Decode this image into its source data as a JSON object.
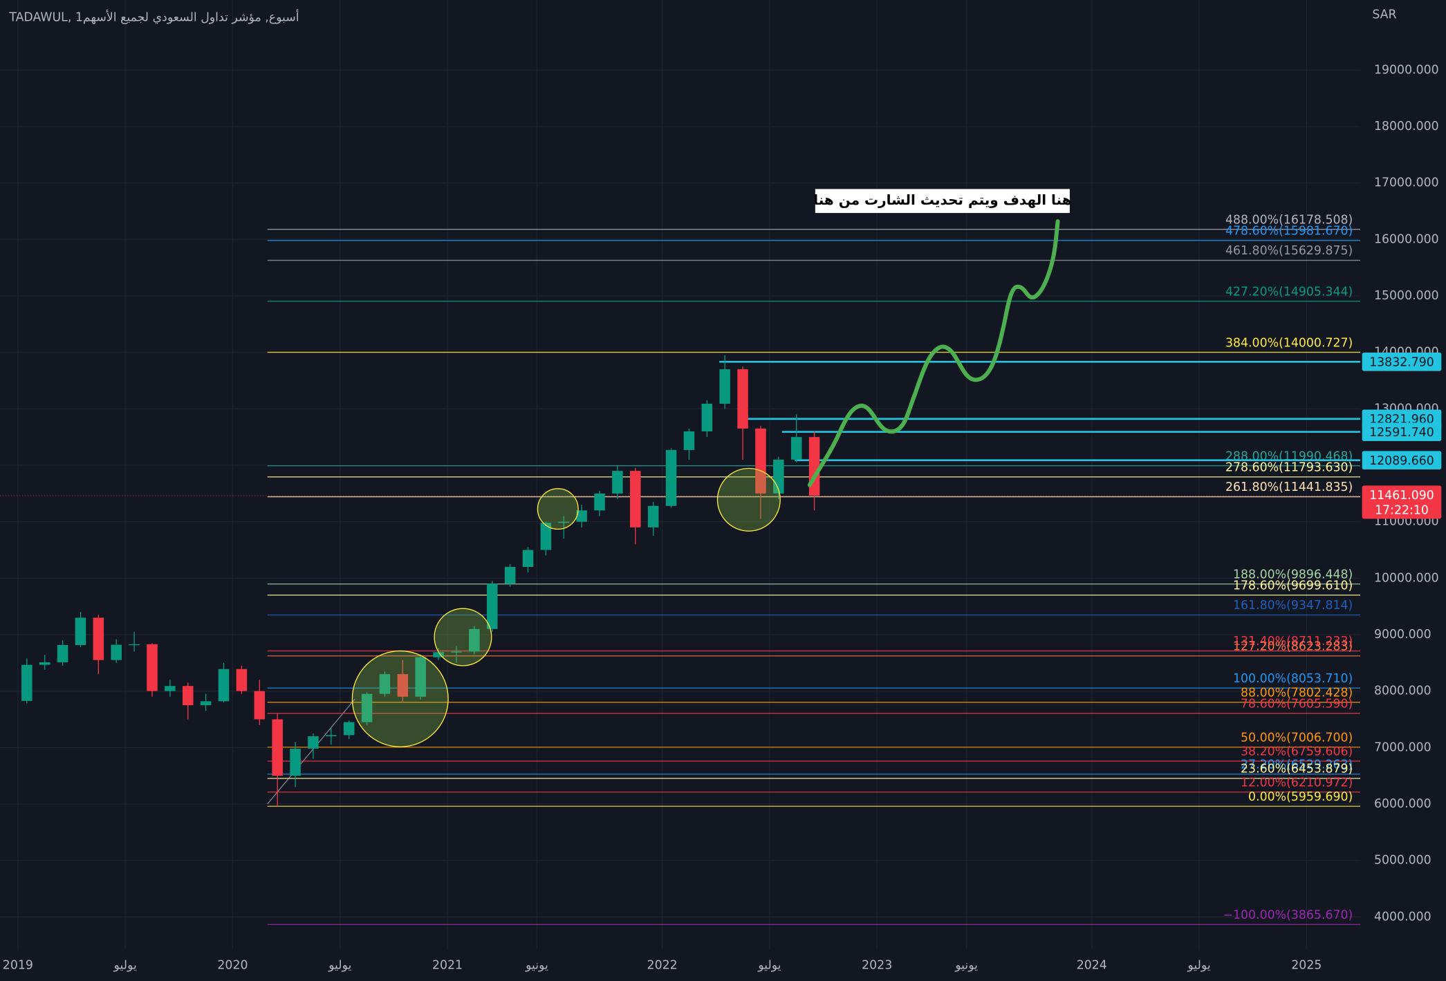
{
  "chart_data": {
    "type": "candlestick",
    "title": "TADAWUL, 1أسبوع, مؤشر تداول السعودي لجميع الأسهم",
    "currency": "SAR",
    "annotation": "هنا الهدف ويتم تحديث الشارت من هنا",
    "up_color": "#089981",
    "down_color": "#f23645",
    "grid": true,
    "xlim": [
      "2018-12",
      "2025-04"
    ],
    "xticks": [
      {
        "value": "2019-01",
        "label": "2019"
      },
      {
        "value": "2019-07",
        "label": "يوليو"
      },
      {
        "value": "2020-01",
        "label": "2020"
      },
      {
        "value": "2020-07",
        "label": "يوليو"
      },
      {
        "value": "2021-01",
        "label": "2021"
      },
      {
        "value": "2021-06",
        "label": "يونيو"
      },
      {
        "value": "2022-01",
        "label": "2022"
      },
      {
        "value": "2022-07",
        "label": "يوليو"
      },
      {
        "value": "2023-01",
        "label": "2023"
      },
      {
        "value": "2023-06",
        "label": "يونيو"
      },
      {
        "value": "2024-01",
        "label": "2024"
      },
      {
        "value": "2024-07",
        "label": "يوليو"
      },
      {
        "value": "2025-01",
        "label": "2025"
      }
    ],
    "ylim": [
      3420,
      20241
    ],
    "yticks": [
      {
        "value": 4000,
        "label": "4000.000"
      },
      {
        "value": 5000,
        "label": "5000.000"
      },
      {
        "value": 6000,
        "label": "6000.000"
      },
      {
        "value": 7000,
        "label": "7000.000"
      },
      {
        "value": 8000,
        "label": "8000.000"
      },
      {
        "value": 9000,
        "label": "9000.000"
      },
      {
        "value": 10000,
        "label": "10000.000"
      },
      {
        "value": 11000,
        "label": "11000.000"
      },
      {
        "value": 12000,
        "label": "12000.000"
      },
      {
        "value": 13000,
        "label": "13000.000"
      },
      {
        "value": 14000,
        "label": "14000.000"
      },
      {
        "value": 15000,
        "label": "15000.000"
      },
      {
        "value": 16000,
        "label": "16000.000"
      },
      {
        "value": 17000,
        "label": "17000.000"
      },
      {
        "value": 18000,
        "label": "18000.000"
      },
      {
        "value": 19000,
        "label": "19000.000"
      }
    ],
    "x": [
      "2019-01",
      "2019-02",
      "2019-03",
      "2019-04",
      "2019-05",
      "2019-06",
      "2019-07",
      "2019-08",
      "2019-09",
      "2019-10",
      "2019-11",
      "2019-12",
      "2020-01",
      "2020-02",
      "2020-03",
      "2020-04",
      "2020-05",
      "2020-06",
      "2020-07",
      "2020-08",
      "2020-09",
      "2020-10",
      "2020-11",
      "2020-12",
      "2021-01",
      "2021-02",
      "2021-03",
      "2021-04",
      "2021-05",
      "2021-06",
      "2021-07",
      "2021-08",
      "2021-09",
      "2021-10",
      "2021-11",
      "2021-12",
      "2022-01",
      "2022-02",
      "2022-03",
      "2022-04",
      "2022-05",
      "2022-06",
      "2022-07",
      "2022-08",
      "2022-09"
    ],
    "open": [
      7826,
      8465,
      8510,
      8816,
      9300,
      8550,
      8820,
      8830,
      8000,
      8090,
      7750,
      7820,
      8390,
      8000,
      7500,
      6500,
      6980,
      7200,
      7220,
      7450,
      7950,
      8300,
      7900,
      8600,
      8690,
      8700,
      9100,
      9900,
      10200,
      10500,
      10980,
      11000,
      11200,
      11500,
      11900,
      10900,
      11280,
      12270,
      12600,
      13090,
      13700,
      12650,
      11500,
      12100,
      12500
    ],
    "high": [
      8580,
      8640,
      8900,
      9400,
      9350,
      8920,
      9050,
      8850,
      8200,
      8150,
      7950,
      8500,
      8450,
      8200,
      7600,
      7100,
      7250,
      7350,
      7480,
      7980,
      8350,
      8550,
      8650,
      8760,
      8800,
      9150,
      9950,
      10250,
      10550,
      11000,
      11100,
      11300,
      11550,
      12000,
      11950,
      11350,
      12300,
      12650,
      13150,
      13950,
      13750,
      12700,
      12150,
      12900,
      12600
    ],
    "low": [
      7780,
      8380,
      8450,
      8780,
      8300,
      8500,
      8700,
      7900,
      7900,
      7500,
      7650,
      7800,
      7950,
      7400,
      5960,
      6300,
      6800,
      7050,
      7150,
      7400,
      7900,
      7800,
      7850,
      8550,
      8500,
      8650,
      9050,
      9850,
      10100,
      10400,
      10700,
      10900,
      11100,
      11400,
      10600,
      10750,
      11250,
      12100,
      12500,
      13000,
      12100,
      11050,
      11400,
      12050,
      11200
    ],
    "close": [
      8465,
      8510,
      8816,
      9300,
      8550,
      8820,
      8830,
      8000,
      8090,
      7750,
      7820,
      8390,
      8000,
      7500,
      6500,
      6980,
      7200,
      7220,
      7450,
      7950,
      8300,
      7900,
      8600,
      8690,
      8700,
      9100,
      9900,
      10200,
      10500,
      10980,
      11000,
      11200,
      11500,
      11900,
      10900,
      11280,
      12270,
      12600,
      13090,
      13700,
      12650,
      11500,
      12100,
      12500,
      11461
    ],
    "fib_levels": [
      {
        "value": 16178.508,
        "label": "488.00%(16178.508)",
        "color": "#b2b5be"
      },
      {
        "value": 15981.67,
        "label": "478.60%(15981.670)",
        "color": "#2196f3"
      },
      {
        "value": 15629.875,
        "label": "461.80%(15629.875)",
        "color": "#9598a1"
      },
      {
        "value": 14905.344,
        "label": "427.20%(14905.344)",
        "color": "#089981"
      },
      {
        "value": 14000.727,
        "label": "384.00%(14000.727)",
        "color": "#ffeb3b"
      },
      {
        "value": 11990.468,
        "label": "288.00%(11990.468)",
        "color": "#26a69a"
      },
      {
        "value": 11793.63,
        "label": "278.60%(11793.630)",
        "color": "#fff59d"
      },
      {
        "value": 11441.835,
        "label": "261.80%(11441.835)",
        "color": "#ffe0b2"
      },
      {
        "value": 9896.448,
        "label": "188.00%(9896.448)",
        "color": "#a5d6a7"
      },
      {
        "value": 9699.61,
        "label": "178.60%(9699.610)",
        "color": "#fff59d"
      },
      {
        "value": 9347.814,
        "label": "161.80%(9347.814)",
        "color": "#1e5fc0"
      },
      {
        "value": 8711.233,
        "label": "131.40%(8711.233)",
        "color": "#f23645"
      },
      {
        "value": 8623.283,
        "label": "127.20%(8623.283)",
        "color": "#ff7043"
      },
      {
        "value": 8053.71,
        "label": "100.00%(8053.710)",
        "color": "#2196f3"
      },
      {
        "value": 7802.428,
        "label": "88.00%(7802.428)",
        "color": "#ff9800"
      },
      {
        "value": 7605.59,
        "label": "78.60%(7605.590)",
        "color": "#f23645"
      },
      {
        "value": 7006.7,
        "label": "50.00%(7006.700)",
        "color": "#ff9800"
      },
      {
        "value": 6759.606,
        "label": "38.20%(6759.606)",
        "color": "#f23645"
      },
      {
        "value": 6529.263,
        "label": "27.20%(6529.263)",
        "color": "#2196f3"
      },
      {
        "value": 6453.879,
        "label": "23.60%(6453.879)",
        "color": "#fff59d"
      },
      {
        "value": 6210.972,
        "label": "12.00%(6210.972)",
        "color": "#f23645"
      },
      {
        "value": 5959.69,
        "label": "0.00%(5959.690)",
        "color": "#ffeb3b"
      },
      {
        "value": 3865.67,
        "label": "−100.00%(3865.670)",
        "color": "#9c27b0"
      }
    ],
    "price_lines": [
      {
        "value": 13832.79,
        "label": "13832.790",
        "color": "#22c4e0"
      },
      {
        "value": 12821.96,
        "label": "12821.960",
        "color": "#22c4e0"
      },
      {
        "value": 12591.74,
        "label": "12591.740",
        "color": "#22c4e0"
      },
      {
        "value": 12089.66,
        "label": "12089.660",
        "color": "#22c4e0"
      }
    ],
    "last_price": {
      "value": 11461.09,
      "label": "11461.090",
      "countdown": "17:22:10",
      "color": "#f23645"
    }
  }
}
